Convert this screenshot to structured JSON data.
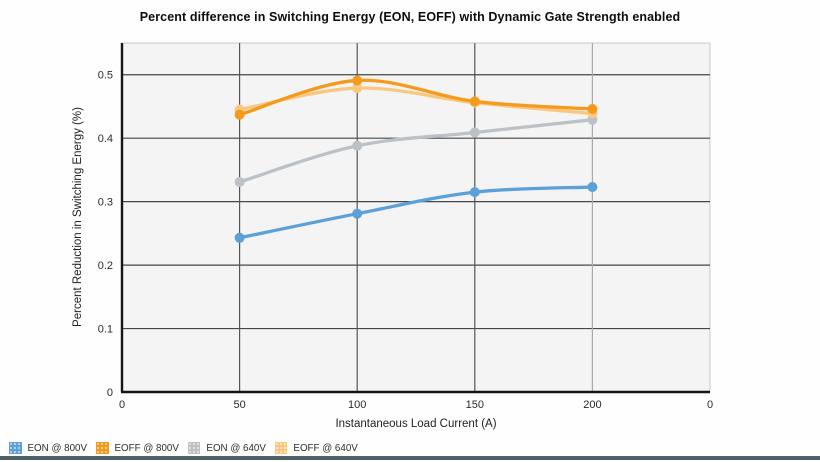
{
  "page": {
    "bottom_bar_color": "#4d6066",
    "canvas_background": "#fefefe"
  },
  "chart_data": {
    "type": "line",
    "title": "Percent difference in Switching Energy (EON, EOFF) with Dynamic Gate Strength enabled",
    "xlabel": "Instantaneous Load Current (A)",
    "ylabel": "Percent Reduction in Switching Energy (%)",
    "categories": [
      50,
      100,
      150,
      200
    ],
    "x_tick_labels": [
      "0",
      "50",
      "100",
      "150",
      "200",
      "0"
    ],
    "y_tick_labels": [
      "0",
      "0.1",
      "0.2",
      "0.3",
      "0.4",
      "0.5"
    ],
    "y_tick_values": [
      0,
      0.1,
      0.2,
      0.3,
      0.4,
      0.5
    ],
    "ylim": [
      0,
      0.55
    ],
    "grid": true,
    "legend_position": "bottom-left",
    "plot_bg": "#f4f4f5",
    "grid_dark": "#474747",
    "grid_light": "#c9c9c9",
    "axis_color": "#151515",
    "tick_label_color": "#2b2b2b",
    "draw_order": [
      2,
      3,
      1,
      0
    ],
    "series": [
      {
        "name": "EON @ 800V",
        "color": "#5ba0d8",
        "values": [
          0.243,
          0.281,
          0.315,
          0.323
        ]
      },
      {
        "name": "EOFF @ 800V",
        "color": "#f49a1c",
        "values": [
          0.437,
          0.491,
          0.458,
          0.446
        ]
      },
      {
        "name": "EON @ 640V",
        "color": "#bcc1c6",
        "values": [
          0.331,
          0.388,
          0.409,
          0.429
        ]
      },
      {
        "name": "EOFF @ 640V",
        "color": "#f9c87e",
        "values": [
          0.445,
          0.479,
          0.456,
          0.439
        ]
      }
    ]
  }
}
